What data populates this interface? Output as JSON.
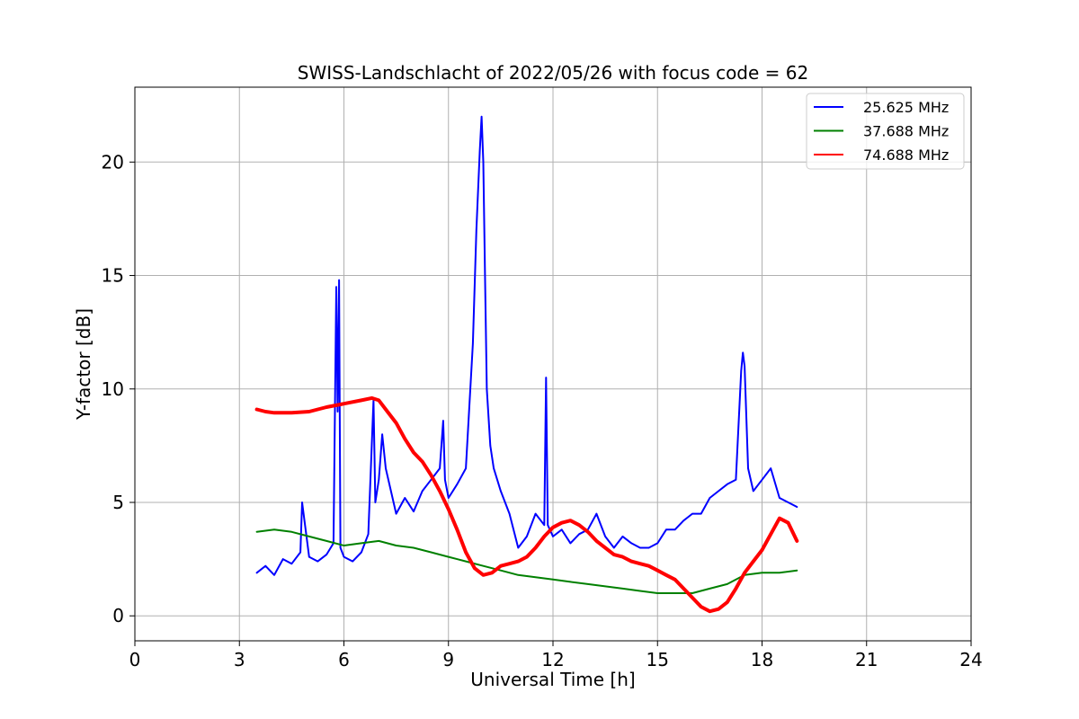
{
  "chart_data": {
    "type": "line",
    "title": "SWISS-Landschlacht of 2022/05/26 with focus code = 62",
    "xlabel": "Universal Time [h]",
    "ylabel": "Y-factor [dB]",
    "xlim": [
      0,
      24
    ],
    "ylim": [
      -1.1,
      23.3
    ],
    "xticks": [
      0,
      3,
      6,
      9,
      12,
      15,
      18,
      21,
      24
    ],
    "yticks": [
      0,
      5,
      10,
      15,
      20
    ],
    "grid": true,
    "legend_position": "top-right",
    "series": [
      {
        "name": "25.625 MHz",
        "color": "#0000ff",
        "x": [
          3.5,
          3.75,
          4.0,
          4.25,
          4.5,
          4.75,
          4.8,
          5.0,
          5.25,
          5.5,
          5.7,
          5.78,
          5.82,
          5.86,
          5.9,
          6.0,
          6.25,
          6.5,
          6.7,
          6.85,
          6.9,
          7.0,
          7.1,
          7.2,
          7.5,
          7.75,
          8.0,
          8.25,
          8.5,
          8.75,
          8.85,
          8.9,
          9.0,
          9.25,
          9.5,
          9.7,
          9.8,
          9.9,
          9.95,
          10.0,
          10.05,
          10.1,
          10.2,
          10.3,
          10.5,
          10.75,
          11.0,
          11.25,
          11.5,
          11.75,
          11.8,
          11.85,
          12.0,
          12.25,
          12.5,
          12.75,
          13.0,
          13.25,
          13.5,
          13.75,
          14.0,
          14.25,
          14.5,
          14.75,
          15.0,
          15.25,
          15.5,
          15.75,
          16.0,
          16.25,
          16.5,
          16.75,
          17.0,
          17.25,
          17.4,
          17.45,
          17.5,
          17.6,
          17.75,
          18.0,
          18.25,
          18.5,
          18.75,
          19.0
        ],
        "y": [
          1.9,
          2.2,
          1.8,
          2.5,
          2.3,
          2.8,
          5.0,
          2.6,
          2.4,
          2.7,
          3.2,
          14.5,
          9.0,
          14.8,
          3.0,
          2.6,
          2.4,
          2.8,
          3.6,
          9.5,
          5.0,
          6.0,
          8.0,
          6.5,
          4.5,
          5.2,
          4.6,
          5.5,
          6.0,
          6.5,
          8.6,
          6.0,
          5.2,
          5.8,
          6.5,
          12.0,
          17.0,
          20.5,
          22.0,
          20.0,
          15.0,
          10.0,
          7.5,
          6.5,
          5.5,
          4.5,
          3.0,
          3.5,
          4.5,
          4.0,
          10.5,
          4.0,
          3.5,
          3.8,
          3.2,
          3.6,
          3.8,
          4.5,
          3.5,
          3.0,
          3.5,
          3.2,
          3.0,
          3.0,
          3.2,
          3.8,
          3.8,
          4.2,
          4.5,
          4.5,
          5.2,
          5.5,
          5.8,
          6.0,
          10.8,
          11.6,
          11.0,
          6.5,
          5.5,
          6.0,
          6.5,
          5.2,
          5.0,
          4.8
        ]
      },
      {
        "name": "37.688 MHz",
        "color": "#008000",
        "x": [
          3.5,
          4.0,
          4.5,
          5.0,
          5.5,
          6.0,
          6.5,
          7.0,
          7.5,
          8.0,
          8.5,
          9.0,
          9.5,
          10.0,
          10.5,
          11.0,
          11.5,
          12.0,
          12.5,
          13.0,
          13.5,
          14.0,
          14.5,
          15.0,
          15.5,
          16.0,
          16.5,
          17.0,
          17.5,
          18.0,
          18.5,
          19.0
        ],
        "y": [
          3.7,
          3.8,
          3.7,
          3.5,
          3.3,
          3.1,
          3.2,
          3.3,
          3.1,
          3.0,
          2.8,
          2.6,
          2.4,
          2.2,
          2.0,
          1.8,
          1.7,
          1.6,
          1.5,
          1.4,
          1.3,
          1.2,
          1.1,
          1.0,
          1.0,
          1.0,
          1.2,
          1.4,
          1.8,
          1.9,
          1.9,
          2.0
        ]
      },
      {
        "name": "74.688 MHz",
        "color": "#ff0000",
        "x": [
          3.5,
          3.75,
          4.0,
          4.5,
          5.0,
          5.5,
          6.0,
          6.5,
          6.8,
          7.0,
          7.25,
          7.5,
          7.75,
          8.0,
          8.25,
          8.5,
          8.75,
          9.0,
          9.25,
          9.5,
          9.75,
          10.0,
          10.25,
          10.5,
          10.75,
          11.0,
          11.25,
          11.5,
          11.75,
          12.0,
          12.25,
          12.5,
          12.75,
          13.0,
          13.25,
          13.5,
          13.75,
          14.0,
          14.25,
          14.5,
          14.75,
          15.0,
          15.25,
          15.5,
          15.75,
          16.0,
          16.25,
          16.5,
          16.75,
          17.0,
          17.25,
          17.5,
          17.75,
          18.0,
          18.25,
          18.5,
          18.75,
          19.0
        ],
        "y": [
          9.1,
          9.0,
          8.95,
          8.95,
          9.0,
          9.2,
          9.35,
          9.5,
          9.6,
          9.5,
          9.0,
          8.5,
          7.8,
          7.2,
          6.8,
          6.2,
          5.5,
          4.7,
          3.8,
          2.8,
          2.1,
          1.8,
          1.9,
          2.2,
          2.3,
          2.4,
          2.6,
          3.0,
          3.5,
          3.9,
          4.1,
          4.2,
          4.0,
          3.7,
          3.3,
          3.0,
          2.7,
          2.6,
          2.4,
          2.3,
          2.2,
          2.0,
          1.8,
          1.6,
          1.2,
          0.8,
          0.4,
          0.2,
          0.3,
          0.6,
          1.2,
          1.9,
          2.4,
          2.9,
          3.6,
          4.3,
          4.1,
          3.3
        ]
      }
    ]
  }
}
